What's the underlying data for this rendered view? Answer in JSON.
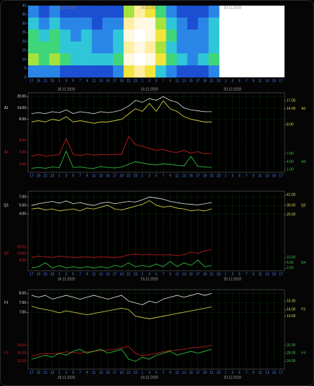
{
  "chart_data": [
    {
      "type": "heatmap",
      "dates": [
        "18.12.2020",
        "19.12.2020",
        "20.12.2020"
      ],
      "ylim": [
        0,
        40
      ],
      "yticks": [
        0,
        5,
        10,
        15,
        20,
        25,
        30,
        35,
        40
      ],
      "colorscale": [
        "#0b1a8c",
        "#1230b0",
        "#1d4fd2",
        "#2a86e6",
        "#2fc6d8",
        "#3fd67a",
        "#a6e23e",
        "#f1e43c",
        "#ffeea0",
        "#fff8e2",
        "#ffffff"
      ],
      "values": [
        [
          3,
          2,
          3,
          2,
          2,
          2,
          2,
          2,
          2,
          6,
          8,
          7,
          5,
          3,
          2,
          2,
          2,
          3
        ],
        [
          4,
          3,
          4,
          3,
          3,
          3,
          2,
          3,
          3,
          8,
          9,
          9,
          6,
          4,
          3,
          2,
          3,
          4
        ],
        [
          5,
          4,
          5,
          4,
          3,
          4,
          3,
          3,
          4,
          9,
          10,
          9,
          7,
          5,
          3,
          3,
          3,
          4
        ],
        [
          5,
          5,
          5,
          4,
          4,
          4,
          3,
          3,
          4,
          8,
          9,
          8,
          6,
          4,
          3,
          3,
          3,
          4
        ],
        [
          6,
          5,
          6,
          5,
          4,
          4,
          4,
          4,
          5,
          9,
          10,
          9,
          7,
          5,
          4,
          3,
          4,
          5
        ],
        [
          3,
          3,
          3,
          2,
          2,
          2,
          2,
          2,
          3,
          7,
          8,
          7,
          4,
          3,
          2,
          2,
          2,
          3
        ]
      ]
    },
    {
      "type": "line",
      "dates": [
        "18.12.2020",
        "19.12.2020",
        "20.12.2020"
      ],
      "categories": [
        "17",
        "19",
        "21",
        "23",
        "1",
        "3",
        "5",
        "7",
        "9",
        "11",
        "13",
        "15",
        "17",
        "19",
        "21",
        "23",
        "1",
        "3",
        "5",
        "7",
        "9",
        "11",
        "13",
        "15",
        "17",
        "19",
        "21",
        "23",
        "1",
        "3",
        "5",
        "7",
        "9",
        "11",
        "13",
        "15",
        "17"
      ],
      "grid": true,
      "series": [
        {
          "name": "A1",
          "color": "#e8e8e8",
          "axis": "y",
          "ylim": [
            -20,
            22
          ],
          "yticks": [
            {
              "value": 8,
              "label": "8.00"
            },
            {
              "value": 14,
              "label": "14.00"
            },
            {
              "value": 20,
              "label": "20.00"
            }
          ],
          "values": [
            11,
            11.5,
            11,
            12,
            11.5,
            13,
            11,
            12,
            11.5,
            11,
            12,
            11.5,
            12,
            13,
            15,
            18,
            17,
            19,
            18,
            20,
            18,
            17,
            14,
            13,
            12.5,
            12,
            12,
            null,
            null,
            null,
            null,
            null,
            null,
            null,
            null,
            null,
            null
          ]
        },
        {
          "name": "A3",
          "color": "#d42020",
          "axis": "y",
          "ylim": [
            0,
            20
          ],
          "yticks": [
            {
              "value": 2,
              "label": "2.00"
            },
            {
              "value": 5,
              "label": "5.00"
            },
            {
              "value": 8,
              "label": "8.00"
            }
          ],
          "values": [
            4,
            4.5,
            4,
            4.2,
            4.5,
            8.5,
            4.5,
            4.2,
            4.6,
            4.3,
            4.5,
            4.4,
            4.6,
            4.5,
            9,
            7,
            6.5,
            6,
            5.5,
            5.8,
            5.2,
            5,
            5.5,
            4.8,
            5.2,
            4.6,
            4.8,
            null,
            null,
            null,
            null,
            null,
            null,
            null,
            null,
            null,
            null
          ]
        },
        {
          "name": "A2",
          "color": "#e6e04a",
          "axis": "y2",
          "ylim": [
            -10,
            20
          ],
          "yticks": [
            {
              "value": 8,
              "label": "8.00"
            },
            {
              "value": 14,
              "label": "14.00"
            },
            {
              "value": 17,
              "label": "17.00"
            }
          ],
          "values": [
            9,
            9.5,
            9,
            10,
            9.5,
            11,
            9,
            9.5,
            9,
            8.5,
            9,
            9,
            9.5,
            10,
            12,
            14,
            13,
            16,
            13,
            17,
            14,
            13,
            11,
            10,
            9.5,
            9,
            9,
            null,
            null,
            null,
            null,
            null,
            null,
            null,
            null,
            null,
            null
          ]
        },
        {
          "name": "A4",
          "color": "#38d040",
          "axis": "y2",
          "ylim": [
            0,
            30
          ],
          "yticks": [
            {
              "value": 1,
              "label": "1.00"
            },
            {
              "value": 4,
              "label": "4.00"
            },
            {
              "value": 7,
              "label": "7.00"
            }
          ],
          "values": [
            1.5,
            1.8,
            1.5,
            2,
            1.7,
            8,
            1.8,
            2,
            1.6,
            1.5,
            2.2,
            1.8,
            1.6,
            2,
            3,
            4,
            3.5,
            3,
            2.8,
            3.2,
            3,
            2.6,
            2.4,
            6,
            2.2,
            2,
            1.8,
            null,
            null,
            null,
            null,
            null,
            null,
            null,
            null,
            null,
            null
          ]
        }
      ]
    },
    {
      "type": "line",
      "dates": [
        "18.12.2020",
        "19.12.2020",
        "20.12.2020"
      ],
      "categories": [
        "17",
        "19",
        "21",
        "23",
        "1",
        "3",
        "5",
        "7",
        "9",
        "11",
        "13",
        "15",
        "17",
        "19",
        "21",
        "23",
        "1",
        "3",
        "5",
        "7",
        "9",
        "11",
        "13",
        "15",
        "17",
        "19",
        "21",
        "23",
        "1",
        "3",
        "5",
        "7",
        "9",
        "11",
        "13",
        "15",
        "17"
      ],
      "grid": true,
      "series": [
        {
          "name": "Q1",
          "color": "#e8e8e8",
          "axis": "y",
          "ylim": [
            -6,
            8
          ],
          "yticks": [
            {
              "value": 4,
              "label": "4.00"
            },
            {
              "value": 5.5,
              "label": "5.50"
            },
            {
              "value": 7,
              "label": "7.00"
            }
          ],
          "values": [
            5.5,
            5.8,
            6,
            6.2,
            5.9,
            6.3,
            5.8,
            6,
            5.7,
            5.5,
            5.9,
            6.1,
            5.8,
            6,
            6.2,
            6.1,
            6.5,
            7,
            6.8,
            6.6,
            6.2,
            6,
            5.8,
            5.7,
            5.6,
            5.8,
            6,
            null,
            null,
            null,
            null,
            null,
            null,
            null,
            null,
            null,
            null
          ]
        },
        {
          "name": "Q3",
          "color": "#d42020",
          "axis": "y",
          "ylim": [
            0,
            60
          ],
          "yticks": [
            {
              "value": 8,
              "label": "8.00"
            },
            {
              "value": 13,
              "label": "13.00"
            },
            {
              "value": 18,
              "label": "18.00"
            }
          ],
          "values": [
            10,
            11,
            10.5,
            10,
            11,
            10.5,
            10,
            10.2,
            10.4,
            10,
            10.5,
            10.2,
            10,
            10.5,
            12,
            12.5,
            12,
            12.3,
            12,
            11.8,
            12,
            11.5,
            12,
            14,
            13,
            15,
            16,
            null,
            null,
            null,
            null,
            null,
            null,
            null,
            null,
            null,
            null
          ]
        },
        {
          "name": "Q2",
          "color": "#e6e04a",
          "axis": "y2",
          "ylim": [
            -40,
            45
          ],
          "yticks": [
            {
              "value": 20,
              "label": "20.00"
            },
            {
              "value": 30,
              "label": "30.00"
            },
            {
              "value": 41,
              "label": "41.00"
            }
          ],
          "values": [
            26,
            27,
            25,
            26,
            24,
            25,
            26,
            24,
            27,
            26,
            28,
            30,
            26,
            25,
            27,
            29,
            31,
            35,
            30,
            28,
            29,
            27,
            26,
            24,
            25,
            24,
            26,
            null,
            null,
            null,
            null,
            null,
            null,
            null,
            null,
            null,
            null
          ]
        },
        {
          "name": "Q4",
          "color": "#38d040",
          "axis": "y2",
          "ylim": [
            0,
            60
          ],
          "yticks": [
            {
              "value": 2,
              "label": "2.00"
            },
            {
              "value": 6,
              "label": "6.00"
            },
            {
              "value": 10,
              "label": "10.00"
            }
          ],
          "values": [
            2,
            3,
            6,
            2,
            4,
            2,
            3,
            2,
            3,
            2,
            3,
            2,
            4,
            3,
            6,
            3,
            4,
            3,
            5,
            3,
            7,
            3,
            6,
            4,
            8,
            3,
            4,
            null,
            null,
            null,
            null,
            null,
            null,
            null,
            null,
            null,
            null
          ]
        }
      ]
    },
    {
      "type": "line",
      "dates": [
        "18.12.2020",
        "19.12.2020",
        "20.12.2020"
      ],
      "categories": [
        "17",
        "19",
        "21",
        "23",
        "1",
        "3",
        "5",
        "7",
        "9",
        "11",
        "13",
        "15",
        "17",
        "19",
        "21",
        "23",
        "1",
        "3",
        "5",
        "7",
        "9",
        "11",
        "13",
        "15",
        "17",
        "19",
        "21",
        "23",
        "1",
        "3",
        "5",
        "7",
        "9",
        "11",
        "13",
        "15",
        "17"
      ],
      "grid": true,
      "series": [
        {
          "name": "F1",
          "color": "#e8e8e8",
          "axis": "y",
          "ylim": [
            4,
            8.2
          ],
          "yticks": [
            {
              "value": 7,
              "label": "7.00"
            },
            {
              "value": 7.5,
              "label": "7.50"
            },
            {
              "value": 8,
              "label": "8.00"
            }
          ],
          "values": [
            7.9,
            7.8,
            7.9,
            7.7,
            7.8,
            7.9,
            7.8,
            7.7,
            7.8,
            7.9,
            7.8,
            7.7,
            7.8,
            7.9,
            7.6,
            7.5,
            7.4,
            7.6,
            7.5,
            7.7,
            7.8,
            7.9,
            7.8,
            7.9,
            8,
            7.9,
            8,
            null,
            null,
            null,
            null,
            null,
            null,
            null,
            null,
            null,
            null
          ]
        },
        {
          "name": "F3",
          "color": "#d42020",
          "axis": "y",
          "ylim": [
            10,
            40
          ],
          "yticks": [
            {
              "value": 13,
              "label": "13.00"
            },
            {
              "value": 16,
              "label": "16.00"
            },
            {
              "value": 19,
              "label": "19.00"
            }
          ],
          "values": [
            15,
            15.5,
            16,
            15.8,
            16,
            16.5,
            16.2,
            16,
            16.5,
            16.8,
            17,
            17.2,
            17.5,
            18,
            18.5,
            16,
            15,
            15.5,
            16,
            16.5,
            17,
            17.2,
            17.5,
            18,
            18.2,
            18.5,
            19,
            null,
            null,
            null,
            null,
            null,
            null,
            null,
            null,
            null,
            null
          ]
        },
        {
          "name": "F2",
          "color": "#e6e04a",
          "axis": "y2",
          "ylim": [
            5,
            17
          ],
          "yticks": [
            {
              "value": 13,
              "label": "13.00"
            },
            {
              "value": 14,
              "label": "14.00"
            },
            {
              "value": 15.3,
              "label": "15.30"
            }
          ],
          "values": [
            14.5,
            14.2,
            14,
            13.8,
            13.5,
            13.8,
            13.6,
            13.4,
            13.2,
            13.4,
            13.6,
            13.8,
            14,
            14.2,
            14,
            13,
            12.8,
            12.6,
            12.8,
            13,
            13.2,
            13.4,
            13.6,
            13.8,
            14,
            14.2,
            14.4,
            null,
            null,
            null,
            null,
            null,
            null,
            null,
            null,
            null,
            null
          ]
        },
        {
          "name": "F4",
          "color": "#38d040",
          "axis": "y2",
          "ylim": [
            20,
            60
          ],
          "yticks": [
            {
              "value": 24,
              "label": "24.00"
            },
            {
              "value": 28,
              "label": "28.00"
            },
            {
              "value": 32,
              "label": "32.00"
            }
          ],
          "values": [
            25,
            26,
            27,
            26,
            28,
            27,
            29,
            30,
            28,
            29,
            30,
            28,
            29,
            30,
            25,
            24,
            26,
            25,
            27,
            28,
            29,
            27,
            28,
            29,
            28,
            29,
            30,
            null,
            null,
            null,
            null,
            null,
            null,
            null,
            null,
            null,
            null
          ]
        }
      ]
    }
  ]
}
